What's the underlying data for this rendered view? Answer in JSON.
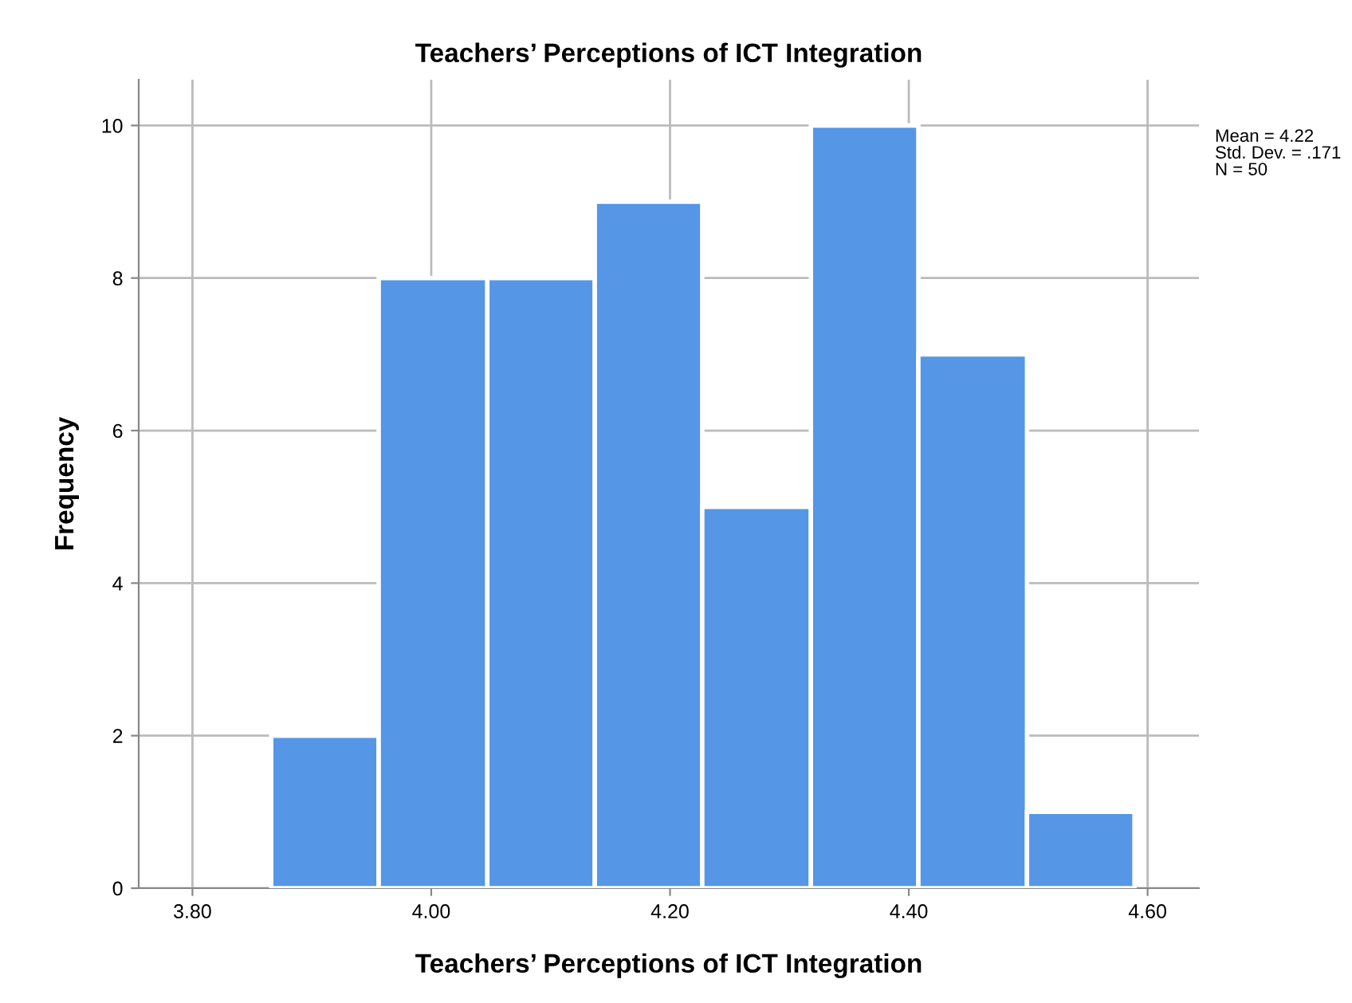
{
  "chart_data": {
    "type": "histogram",
    "title": "Teachers’ Perceptions of ICT Integration",
    "xlabel": "Teachers’ Perceptions of ICT Integration",
    "ylabel": "Frequency",
    "bins": [
      3.866,
      3.956,
      4.047,
      4.137,
      4.227,
      4.318,
      4.408,
      4.499,
      4.589
    ],
    "values": [
      2,
      8,
      8,
      9,
      5,
      10,
      7,
      1
    ],
    "color": "#5596e6",
    "xlim": [
      3.755,
      4.643
    ],
    "ylim": [
      0,
      10.6
    ],
    "xticks": [
      {
        "value": 3.8,
        "label": "3.80"
      },
      {
        "value": 4.0,
        "label": "4.00"
      },
      {
        "value": 4.2,
        "label": "4.20"
      },
      {
        "value": 4.4,
        "label": "4.40"
      },
      {
        "value": 4.6,
        "label": "4.60"
      }
    ],
    "yticks": [
      0,
      2,
      4,
      6,
      8,
      10
    ],
    "grid": true,
    "annotations": [
      "Mean = 4.22",
      "Std. Dev. = .171",
      "N = 50"
    ]
  }
}
